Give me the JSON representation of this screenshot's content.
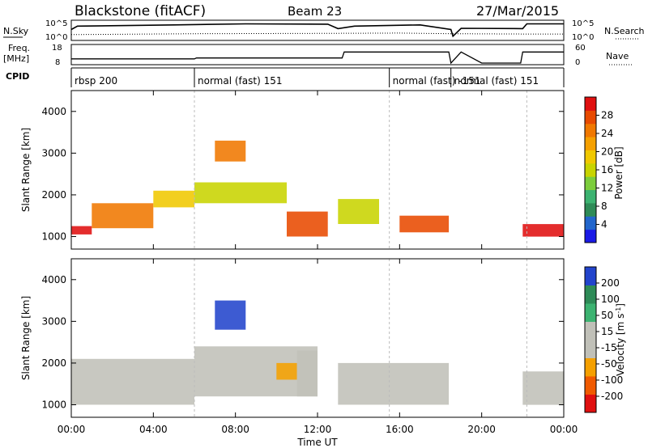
{
  "header": {
    "station_label": "Blackstone (fitACF)",
    "beam_label": "Beam 23",
    "date_label": "27/Mar/2015"
  },
  "noise_panel": {
    "left_label": "N.Sky",
    "right_label": "N.Search",
    "left_ticks": [
      "10^5",
      "10^0"
    ],
    "right_ticks": [
      "10^5",
      "10^0"
    ]
  },
  "freq_panel": {
    "left_label_1": "Freq.",
    "left_label_2": "[MHz]",
    "right_label": "Nave",
    "left_ticks": [
      "18",
      "8"
    ],
    "right_ticks": [
      "60",
      "0"
    ]
  },
  "cpid_panel": {
    "label": "CPID",
    "segments": [
      {
        "text": "rbsp 200",
        "start_h": 0.0
      },
      {
        "text": "normal (fast) 151",
        "start_h": 6.0
      },
      {
        "text": "normal (fast) -151",
        "start_h": 15.5
      },
      {
        "text": "normal (fast) 151",
        "start_h": 18.5
      }
    ]
  },
  "power_panel": {
    "ylabel": "Slant Range [km]",
    "colorbar_label": "Power [dB]",
    "colorbar_ticks": [
      "28",
      "24",
      "20",
      "16",
      "12",
      "8",
      "4"
    ]
  },
  "velocity_panel": {
    "ylabel": "Slant Range [km]",
    "colorbar_ticks": [
      "200",
      "100",
      "50",
      "15",
      "-15",
      "-50",
      "-100",
      "-200"
    ]
  },
  "xaxis": {
    "label": "Time UT",
    "ticks": [
      "00:00",
      "04:00",
      "08:00",
      "12:00",
      "16:00",
      "20:00",
      "00:00"
    ]
  },
  "colors": {
    "power_scale": [
      "#1a1ae6",
      "#2266cc",
      "#2e8b57",
      "#3cb371",
      "#7ccd3c",
      "#c8d400",
      "#f0c800",
      "#f5a000",
      "#f07800",
      "#e84a00",
      "#e01010"
    ],
    "velocity_scale": [
      "#e01010",
      "#f05a00",
      "#f5a000",
      "#c0c0b8",
      "#c0c0b8",
      "#3cb371",
      "#2e8b57",
      "#2244cc"
    ],
    "ground_scatter": "#c0c0b8"
  },
  "chart_data": [
    {
      "type": "line",
      "name": "noise",
      "x_range_hours": [
        0,
        24
      ],
      "series_segments": [
        {
          "name": "N.Sky",
          "points": [
            [
              0,
              0.55
            ],
            [
              0.3,
              0.75
            ],
            [
              5.0,
              0.82
            ],
            [
              8.5,
              0.88
            ],
            [
              12.5,
              0.86
            ],
            [
              13.0,
              0.6
            ],
            [
              13.8,
              0.75
            ],
            [
              17.0,
              0.82
            ],
            [
              18.5,
              0.55
            ],
            [
              18.6,
              0.15
            ],
            [
              19.0,
              0.62
            ],
            [
              22.0,
              0.6
            ],
            [
              22.2,
              0.88
            ],
            [
              24.0,
              0.88
            ]
          ]
        },
        {
          "name": "N.Search",
          "points": [
            [
              0,
              0.25
            ],
            [
              6.0,
              0.3
            ],
            [
              12.0,
              0.32
            ],
            [
              16.0,
              0.34
            ],
            [
              18.5,
              0.3
            ],
            [
              22.2,
              0.28
            ],
            [
              24.0,
              0.28
            ]
          ]
        }
      ]
    },
    {
      "type": "line",
      "name": "frequency",
      "x_range_hours": [
        0,
        24
      ],
      "series_segments": [
        {
          "name": "Freq",
          "points": [
            [
              0,
              10.5
            ],
            [
              6.0,
              10.5
            ],
            [
              6.1,
              11.0
            ],
            [
              13.2,
              11.0
            ],
            [
              13.3,
              14.5
            ],
            [
              18.4,
              14.5
            ],
            [
              18.5,
              8.0
            ],
            [
              19.0,
              14.5
            ],
            [
              20.0,
              8.0
            ],
            [
              21.9,
              8.0
            ],
            [
              22.0,
              14.5
            ],
            [
              24.0,
              14.5
            ]
          ]
        }
      ]
    },
    {
      "type": "heatmap",
      "name": "power",
      "x_range_hours": [
        0,
        24
      ],
      "y_range_km": [
        700,
        4500
      ],
      "colorbar_range_db": [
        0,
        30
      ],
      "bands": [
        {
          "x0": 0.0,
          "x1": 1.0,
          "y0": 1050,
          "y1": 1250,
          "level": 28
        },
        {
          "x0": 1.0,
          "x1": 4.0,
          "y0": 1200,
          "y1": 1800,
          "level": 22
        },
        {
          "x0": 4.0,
          "x1": 6.0,
          "y0": 1700,
          "y1": 2100,
          "level": 18
        },
        {
          "x0": 6.0,
          "x1": 10.5,
          "y0": 1800,
          "y1": 2300,
          "level": 14
        },
        {
          "x0": 7.0,
          "x1": 8.5,
          "y0": 2800,
          "y1": 3300,
          "level": 24
        },
        {
          "x0": 10.5,
          "x1": 12.5,
          "y0": 1000,
          "y1": 1600,
          "level": 26
        },
        {
          "x0": 13.0,
          "x1": 15.0,
          "y0": 1300,
          "y1": 1900,
          "level": 16
        },
        {
          "x0": 16.0,
          "x1": 18.4,
          "y0": 1100,
          "y1": 1500,
          "level": 26
        },
        {
          "x0": 22.0,
          "x1": 24.0,
          "y0": 1000,
          "y1": 1300,
          "level": 28
        }
      ]
    },
    {
      "type": "heatmap",
      "name": "velocity",
      "x_range_hours": [
        0,
        24
      ],
      "y_range_km": [
        700,
        4500
      ],
      "colorbar_range_ms": [
        -200,
        200
      ],
      "bands": [
        {
          "x0": 0.0,
          "x1": 6.0,
          "y0": 1000,
          "y1": 2100,
          "level": 0
        },
        {
          "x0": 6.0,
          "x1": 12.0,
          "y0": 1200,
          "y1": 2400,
          "level": 0
        },
        {
          "x0": 7.0,
          "x1": 8.5,
          "y0": 2800,
          "y1": 3500,
          "level": 150
        },
        {
          "x0": 10.0,
          "x1": 11.0,
          "y0": 1600,
          "y1": 2000,
          "level": -80
        },
        {
          "x0": 11.0,
          "x1": 12.0,
          "y0": 1200,
          "y1": 2300,
          "level": 40
        },
        {
          "x0": 13.0,
          "x1": 18.4,
          "y0": 1000,
          "y1": 2000,
          "level": 0
        },
        {
          "x0": 22.0,
          "x1": 24.0,
          "y0": 1000,
          "y1": 1800,
          "level": 0
        }
      ]
    }
  ]
}
